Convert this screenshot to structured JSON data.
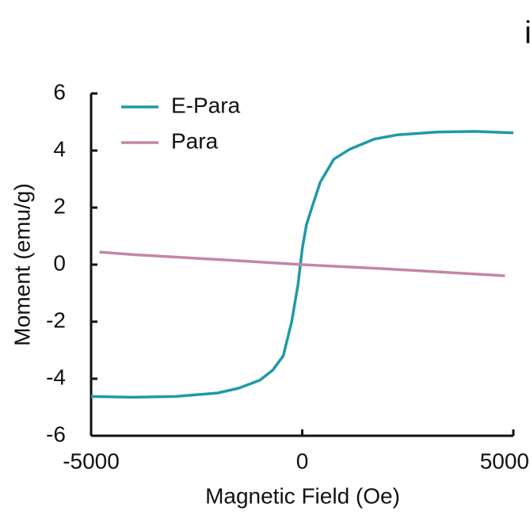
{
  "chart_data": {
    "type": "line",
    "panel_label": "i",
    "x_label": "Magnetic Field (Oe)",
    "y_label": "Moment (emu/g)",
    "xlim": [
      -5000,
      5000
    ],
    "xticks": [
      -5000,
      0,
      5000
    ],
    "ylim": [
      -6,
      6
    ],
    "yticks": [
      -6,
      -4,
      -2,
      0,
      2,
      4,
      6
    ],
    "legend": "upper left",
    "grid": false,
    "series": [
      {
        "name": "E-Para",
        "color": "#1e9aa8",
        "x": [
          -5000,
          -4000,
          -3000,
          -2000,
          -1500,
          -1000,
          -700,
          -450,
          -250,
          -100,
          0,
          100,
          250,
          430,
          750,
          1130,
          1700,
          2250,
          3200,
          4100,
          5000
        ],
        "values": [
          -4.62,
          -4.65,
          -4.62,
          -4.5,
          -4.33,
          -4.05,
          -3.7,
          -3.2,
          -2.0,
          -0.7,
          0.55,
          1.4,
          2.1,
          2.9,
          3.7,
          4.05,
          4.4,
          4.55,
          4.65,
          4.67,
          4.62
        ]
      },
      {
        "name": "Para",
        "color": "#c485a6",
        "x": [
          -4800,
          -4000,
          -2000,
          0,
          2000,
          4800
        ],
        "values": [
          0.44,
          0.35,
          0.18,
          0.0,
          -0.15,
          -0.39
        ]
      }
    ]
  }
}
